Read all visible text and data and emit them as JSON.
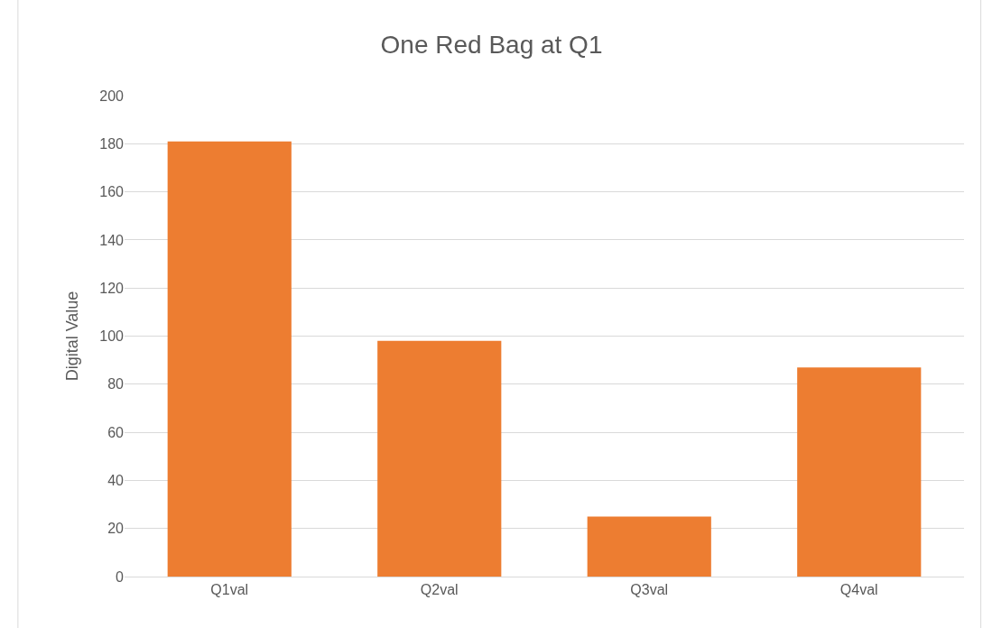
{
  "chart_data": {
    "type": "bar",
    "title": "One Red Bag at Q1",
    "ylabel": "Digital Value",
    "categories": [
      "Q1val",
      "Q2val",
      "Q3val",
      "Q4val"
    ],
    "values": [
      181,
      98,
      25,
      87
    ],
    "color": "#ed7d31",
    "ylim": [
      0,
      200
    ],
    "yticks": [
      0,
      20,
      40,
      60,
      80,
      100,
      120,
      140,
      160,
      180,
      200
    ],
    "grid": "y",
    "legend": false
  }
}
